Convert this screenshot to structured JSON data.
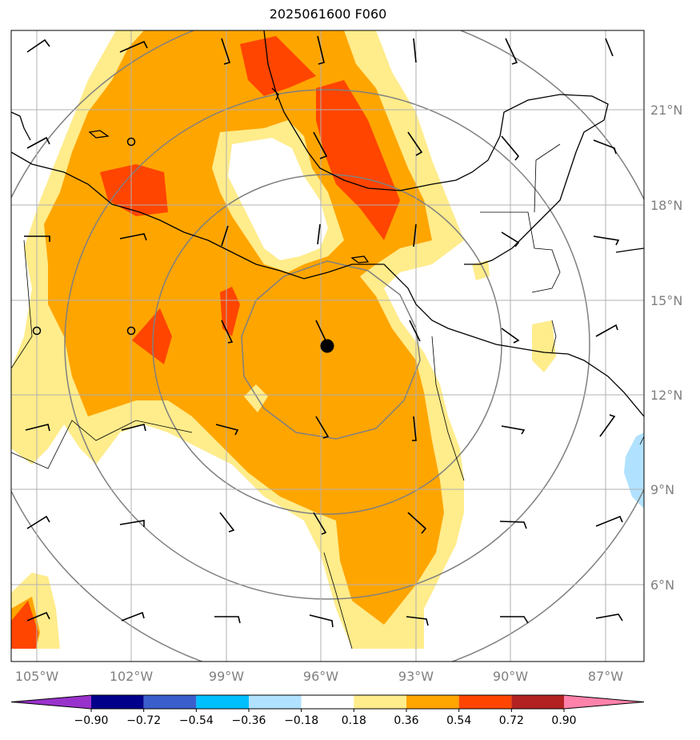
{
  "title": "2025061600 F060",
  "lon_labels": [
    "105°W",
    "102°W",
    "99°W",
    "96°W",
    "93°W",
    "90°W",
    "87°W"
  ],
  "lat_labels": [
    "21°N",
    "18°N",
    "15°N",
    "12°N",
    "9°N",
    "6°N"
  ],
  "colorbar": {
    "colors": [
      "#9932cc",
      "#00008b",
      "#3a5fcd",
      "#00bfff",
      "#b0e2ff",
      "#ffffff",
      "#ffec8b",
      "#ffa500",
      "#ff4500",
      "#b22222",
      "#ff82ab"
    ],
    "tick_labels": [
      "−0.90",
      "−0.72",
      "−0.54",
      "−0.36",
      "−0.18",
      "0.18",
      "0.36",
      "0.54",
      "0.72",
      "0.90"
    ]
  },
  "shading_colors": {
    "light": "#ffec8b",
    "medium": "#ffa500",
    "high": "#ff4500",
    "negative": "#b0e2ff"
  },
  "storm_center": {
    "lon": "96°W",
    "lat": "13.5°N",
    "marker": "filled-circle"
  },
  "range_rings": 4
}
